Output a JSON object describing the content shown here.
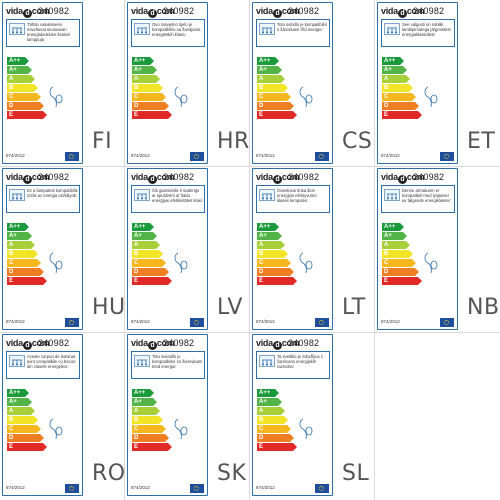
{
  "brand": "vida",
  "brand_suffix": "com",
  "product_code": "240982",
  "regulation": "874/2012",
  "energy_classes": [
    {
      "label": "A++",
      "color": "#1a9a3b"
    },
    {
      "label": "A+",
      "color": "#52b447"
    },
    {
      "label": "A",
      "color": "#a6cf3a"
    },
    {
      "label": "B",
      "color": "#f2e528"
    },
    {
      "label": "C",
      "color": "#f6b61e"
    },
    {
      "label": "D",
      "color": "#ef7d22"
    },
    {
      "label": "E",
      "color": "#e12a27"
    }
  ],
  "labels": [
    {
      "lang": "FI",
      "text": "Tähän valaisimeen soveltuvat seuraavan energialuokkien lisäisin lamppuja"
    },
    {
      "lang": "HR",
      "text": "Ovo rasvjetno tijelo je kompatibilno sa žaruljama energetskih klasa:"
    },
    {
      "lang": "CS",
      "text": "Toto svítidlo je kompatibilní s žárovkami tříd energie:"
    },
    {
      "lang": "ET",
      "text": "See valgusti on sobilik lambipirnidega järgmistest energiaklassidest:"
    },
    {
      "lang": "HU",
      "text": "Ez a lámpatest kompatibilis izzók az energia osztályok:"
    },
    {
      "lang": "LV",
      "text": "Šis gaismeklis ir saderīgs ar spuldzēm ar šādu enerģijas efektivitātes klasi:"
    },
    {
      "lang": "LT",
      "text": "Šviestuvui tinka šios energijos efektyvumo klasės lemputės:"
    },
    {
      "lang": "NB",
      "text": "Denne armaturen er kompatibel med lyspærer av følgende energiklasser:"
    },
    {
      "lang": "RO",
      "text": "Aceste corpuri de iluminat sunt compatibile cu becuri din clasele energetice:"
    },
    {
      "lang": "SK",
      "text": "Toto svietidlo je kompatibilné so žiarovkami tried energie:"
    },
    {
      "lang": "SL",
      "text": "Ta svetilka je združljiva z žarnicami energijskih razredov:"
    }
  ]
}
